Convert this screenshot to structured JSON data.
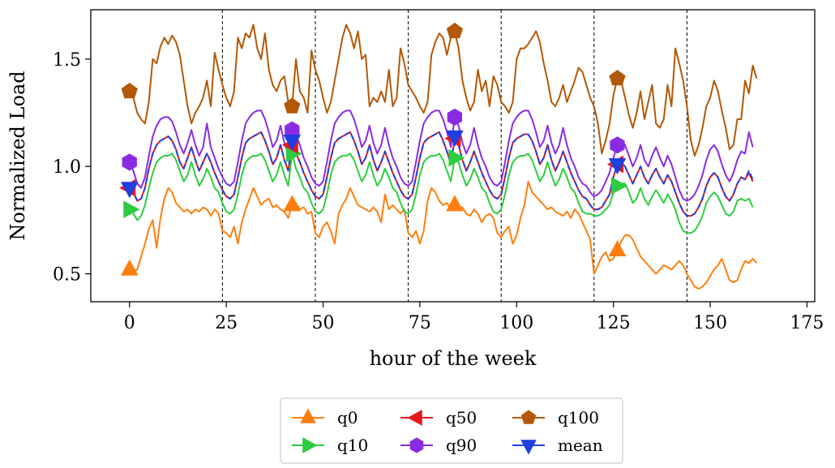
{
  "chart_data": {
    "type": "line",
    "title": "",
    "xlabel": "hour of the week",
    "ylabel": "Normalized Load",
    "xlim": [
      -10,
      177
    ],
    "ylim": [
      0.37,
      1.73
    ],
    "xticks": [
      0,
      25,
      50,
      75,
      100,
      125,
      150,
      175
    ],
    "yticks": [
      0.5,
      1.0,
      1.5
    ],
    "ytick_labels": [
      "0.5",
      "1.0",
      "1.5"
    ],
    "day_boundaries": [
      24,
      48,
      72,
      96,
      120,
      144
    ],
    "legend_position": "below",
    "legend_ncol": 3,
    "marker_x": [
      0,
      42,
      84,
      126
    ],
    "series": [
      {
        "name": "q0",
        "color": "#ff7f0e",
        "marker": "triangle-up",
        "values": [
          0.52,
          0.51,
          0.52,
          0.58,
          0.64,
          0.71,
          0.75,
          0.62,
          0.76,
          0.85,
          0.9,
          0.88,
          0.83,
          0.81,
          0.79,
          0.8,
          0.78,
          0.8,
          0.79,
          0.81,
          0.8,
          0.77,
          0.8,
          0.78,
          0.7,
          0.69,
          0.67,
          0.72,
          0.64,
          0.74,
          0.8,
          0.85,
          0.9,
          0.86,
          0.82,
          0.84,
          0.85,
          0.81,
          0.82,
          0.8,
          0.79,
          0.76,
          0.82,
          0.83,
          0.8,
          0.81,
          0.78,
          0.79,
          0.69,
          0.67,
          0.72,
          0.74,
          0.7,
          0.64,
          0.78,
          0.82,
          0.85,
          0.9,
          0.86,
          0.82,
          0.81,
          0.8,
          0.79,
          0.81,
          0.79,
          0.74,
          0.87,
          0.8,
          0.82,
          0.8,
          0.78,
          0.8,
          0.69,
          0.67,
          0.7,
          0.64,
          0.7,
          0.84,
          0.9,
          0.88,
          0.84,
          0.82,
          0.83,
          0.8,
          0.82,
          0.8,
          0.81,
          0.78,
          0.77,
          0.8,
          0.78,
          0.74,
          0.77,
          0.78,
          0.76,
          0.69,
          0.67,
          0.7,
          0.72,
          0.64,
          0.68,
          0.76,
          0.82,
          0.93,
          0.88,
          0.86,
          0.84,
          0.82,
          0.8,
          0.81,
          0.79,
          0.78,
          0.77,
          0.79,
          0.76,
          0.8,
          0.78,
          0.74,
          0.7,
          0.66,
          0.5,
          0.54,
          0.58,
          0.6,
          0.56,
          0.57,
          0.61,
          0.65,
          0.68,
          0.68,
          0.66,
          0.62,
          0.58,
          0.56,
          0.54,
          0.52,
          0.5,
          0.52,
          0.54,
          0.53,
          0.52,
          0.54,
          0.56,
          0.54,
          0.5,
          0.47,
          0.44,
          0.43,
          0.44,
          0.46,
          0.49,
          0.52,
          0.54,
          0.57,
          0.52,
          0.47,
          0.46,
          0.47,
          0.52,
          0.56,
          0.55,
          0.57,
          0.55
        ]
      },
      {
        "name": "q10",
        "color": "#2ecc40",
        "marker": "triangle-right",
        "values": [
          0.8,
          0.78,
          0.75,
          0.77,
          0.82,
          0.9,
          0.97,
          1.02,
          1.04,
          1.05,
          1.05,
          1.06,
          1.03,
          0.98,
          0.93,
          0.96,
          1.02,
          0.96,
          0.91,
          0.94,
          0.99,
          0.95,
          0.9,
          0.88,
          0.83,
          0.79,
          0.78,
          0.8,
          0.87,
          0.96,
          1.02,
          1.04,
          1.05,
          1.05,
          1.06,
          1.03,
          0.98,
          0.93,
          0.96,
          1.02,
          0.96,
          0.91,
          1.06,
          0.99,
          0.95,
          0.9,
          0.88,
          0.83,
          0.79,
          0.78,
          0.8,
          0.87,
          0.96,
          1.02,
          1.04,
          1.05,
          1.05,
          1.06,
          1.03,
          0.98,
          0.93,
          0.96,
          1.02,
          0.96,
          0.91,
          0.94,
          0.99,
          0.95,
          0.9,
          0.88,
          0.83,
          0.79,
          0.78,
          0.8,
          0.87,
          0.96,
          1.02,
          1.04,
          1.05,
          1.05,
          1.06,
          1.03,
          0.98,
          0.93,
          1.04,
          1.02,
          0.96,
          0.91,
          0.94,
          0.99,
          0.95,
          0.9,
          0.88,
          0.83,
          0.79,
          0.78,
          0.8,
          0.87,
          0.96,
          1.02,
          1.04,
          1.05,
          1.05,
          1.06,
          1.03,
          0.98,
          0.93,
          0.96,
          1.02,
          0.96,
          0.91,
          0.94,
          0.99,
          0.95,
          0.9,
          0.88,
          0.83,
          0.79,
          0.78,
          0.78,
          0.77,
          0.77,
          0.78,
          0.8,
          0.82,
          0.88,
          0.91,
          0.92,
          0.92,
          0.88,
          0.83,
          0.85,
          0.9,
          0.85,
          0.82,
          0.86,
          0.89,
          0.86,
          0.83,
          0.87,
          0.84,
          0.8,
          0.74,
          0.7,
          0.69,
          0.69,
          0.7,
          0.73,
          0.77,
          0.83,
          0.86,
          0.88,
          0.86,
          0.82,
          0.78,
          0.77,
          0.79,
          0.84,
          0.85,
          0.84,
          0.85,
          0.81
        ]
      },
      {
        "name": "q50",
        "color": "#e41a1c",
        "marker": "triangle-left",
        "values": [
          0.9,
          0.88,
          0.84,
          0.85,
          0.9,
          0.99,
          1.06,
          1.1,
          1.12,
          1.13,
          1.14,
          1.12,
          1.08,
          1.02,
          0.99,
          1.04,
          1.09,
          1.03,
          0.98,
          1.02,
          1.06,
          1.02,
          0.97,
          0.93,
          0.89,
          0.86,
          0.85,
          0.87,
          0.95,
          1.04,
          1.11,
          1.13,
          1.14,
          1.15,
          1.16,
          1.12,
          1.07,
          1.01,
          1.04,
          1.1,
          1.03,
          0.98,
          1.1,
          1.06,
          1.02,
          0.97,
          0.93,
          0.89,
          0.86,
          0.85,
          0.87,
          0.95,
          1.04,
          1.11,
          1.13,
          1.14,
          1.15,
          1.16,
          1.12,
          1.07,
          1.01,
          1.04,
          1.1,
          1.03,
          0.98,
          1.02,
          1.07,
          1.02,
          0.97,
          0.93,
          0.89,
          0.86,
          0.85,
          0.87,
          0.95,
          1.04,
          1.11,
          1.13,
          1.14,
          1.15,
          1.16,
          1.12,
          1.07,
          1.01,
          1.13,
          1.1,
          1.03,
          0.98,
          1.02,
          1.07,
          1.02,
          0.97,
          0.93,
          0.89,
          0.86,
          0.85,
          0.87,
          0.95,
          1.04,
          1.11,
          1.13,
          1.14,
          1.15,
          1.15,
          1.12,
          1.07,
          1.01,
          1.04,
          1.1,
          1.03,
          0.98,
          1.02,
          1.07,
          1.02,
          0.97,
          0.93,
          0.89,
          0.86,
          0.85,
          0.82,
          0.8,
          0.8,
          0.81,
          0.84,
          0.87,
          0.95,
          1.01,
          1.02,
          1.0,
          0.96,
          0.92,
          0.96,
          1.0,
          0.95,
          0.92,
          0.96,
          0.99,
          0.95,
          0.92,
          0.96,
          0.93,
          0.88,
          0.83,
          0.79,
          0.77,
          0.77,
          0.78,
          0.81,
          0.85,
          0.91,
          0.95,
          0.97,
          0.95,
          0.9,
          0.86,
          0.84,
          0.87,
          0.92,
          0.95,
          0.94,
          0.97,
          0.93
        ]
      },
      {
        "name": "q90",
        "color": "#8a2be2",
        "marker": "hexagon",
        "values": [
          1.02,
          0.98,
          0.92,
          0.9,
          0.95,
          1.05,
          1.14,
          1.19,
          1.22,
          1.23,
          1.23,
          1.21,
          1.16,
          1.1,
          1.06,
          1.11,
          1.17,
          1.1,
          1.05,
          1.09,
          1.2,
          1.09,
          1.04,
          0.99,
          0.95,
          0.92,
          0.91,
          0.93,
          1.02,
          1.12,
          1.2,
          1.23,
          1.25,
          1.26,
          1.26,
          1.22,
          1.16,
          1.09,
          1.12,
          1.19,
          1.11,
          1.06,
          1.17,
          1.15,
          1.1,
          1.04,
          1.0,
          0.95,
          0.92,
          0.91,
          0.93,
          1.02,
          1.12,
          1.2,
          1.23,
          1.25,
          1.26,
          1.26,
          1.22,
          1.16,
          1.09,
          1.12,
          1.19,
          1.11,
          1.06,
          1.1,
          1.18,
          1.1,
          1.04,
          1.0,
          0.95,
          0.92,
          0.91,
          0.93,
          1.02,
          1.12,
          1.2,
          1.23,
          1.25,
          1.26,
          1.26,
          1.22,
          1.16,
          1.09,
          1.23,
          1.19,
          1.11,
          1.06,
          1.1,
          1.18,
          1.1,
          1.04,
          1.0,
          0.95,
          0.92,
          0.91,
          0.93,
          1.02,
          1.12,
          1.2,
          1.23,
          1.25,
          1.26,
          1.26,
          1.22,
          1.16,
          1.09,
          1.12,
          1.19,
          1.11,
          1.06,
          1.1,
          1.18,
          1.1,
          1.04,
          1.0,
          0.95,
          0.92,
          0.91,
          0.88,
          0.86,
          0.87,
          0.89,
          0.93,
          0.97,
          1.04,
          1.1,
          1.12,
          1.1,
          1.05,
          1.0,
          1.04,
          1.1,
          1.03,
          1.0,
          1.05,
          1.09,
          1.04,
          1.0,
          1.05,
          1.01,
          0.95,
          0.89,
          0.85,
          0.84,
          0.85,
          0.87,
          0.91,
          0.96,
          1.03,
          1.08,
          1.1,
          1.07,
          1.01,
          0.96,
          0.93,
          0.97,
          1.03,
          1.07,
          1.06,
          1.16,
          1.09
        ]
      },
      {
        "name": "q100",
        "color": "#b35806",
        "marker": "pentagon",
        "values": [
          1.35,
          1.32,
          1.25,
          1.22,
          1.2,
          1.3,
          1.5,
          1.48,
          1.56,
          1.6,
          1.57,
          1.61,
          1.58,
          1.52,
          1.4,
          1.28,
          1.2,
          1.25,
          1.28,
          1.32,
          1.4,
          1.28,
          1.53,
          1.45,
          1.38,
          1.32,
          1.28,
          1.35,
          1.6,
          1.55,
          1.62,
          1.6,
          1.66,
          1.55,
          1.5,
          1.62,
          1.45,
          1.38,
          1.35,
          1.4,
          1.42,
          1.3,
          1.28,
          1.5,
          1.35,
          1.32,
          1.25,
          1.54,
          1.45,
          1.4,
          1.32,
          1.25,
          1.3,
          1.4,
          1.5,
          1.6,
          1.66,
          1.62,
          1.55,
          1.63,
          1.5,
          1.52,
          1.28,
          1.32,
          1.3,
          1.35,
          1.3,
          1.45,
          1.28,
          1.32,
          1.55,
          1.48,
          1.38,
          1.35,
          1.32,
          1.28,
          1.25,
          1.3,
          1.52,
          1.58,
          1.62,
          1.6,
          1.52,
          1.6,
          1.63,
          1.55,
          1.4,
          1.32,
          1.26,
          1.3,
          1.45,
          1.35,
          1.4,
          1.28,
          1.42,
          1.38,
          1.3,
          1.28,
          1.25,
          1.3,
          1.5,
          1.55,
          1.55,
          1.57,
          1.6,
          1.63,
          1.58,
          1.48,
          1.4,
          1.3,
          1.28,
          1.32,
          1.38,
          1.3,
          1.35,
          1.4,
          1.46,
          1.44,
          1.38,
          1.32,
          1.28,
          1.2,
          1.06,
          1.12,
          1.2,
          1.33,
          1.41,
          1.4,
          1.32,
          1.24,
          1.18,
          1.25,
          1.35,
          1.22,
          1.3,
          1.38,
          1.2,
          1.18,
          1.22,
          1.38,
          1.28,
          1.55,
          1.48,
          1.4,
          1.28,
          1.12,
          1.05,
          1.1,
          1.18,
          1.28,
          1.32,
          1.4,
          1.35,
          1.26,
          1.18,
          1.08,
          1.1,
          1.22,
          1.22,
          1.4,
          1.34,
          1.47,
          1.41
        ]
      },
      {
        "name": "mean",
        "color": "#1f3fe0",
        "marker": "triangle-down",
        "values": [
          0.9,
          0.88,
          0.84,
          0.85,
          0.9,
          0.99,
          1.06,
          1.1,
          1.12,
          1.13,
          1.14,
          1.12,
          1.08,
          1.02,
          0.99,
          1.04,
          1.09,
          1.03,
          0.98,
          1.02,
          1.06,
          1.02,
          0.97,
          0.93,
          0.89,
          0.86,
          0.85,
          0.87,
          0.95,
          1.04,
          1.11,
          1.13,
          1.14,
          1.15,
          1.16,
          1.12,
          1.07,
          1.01,
          1.04,
          1.1,
          1.03,
          0.98,
          1.12,
          1.06,
          1.02,
          0.97,
          0.93,
          0.89,
          0.86,
          0.85,
          0.87,
          0.95,
          1.04,
          1.11,
          1.13,
          1.14,
          1.15,
          1.16,
          1.12,
          1.07,
          1.01,
          1.04,
          1.1,
          1.03,
          0.98,
          1.02,
          1.07,
          1.02,
          0.97,
          0.93,
          0.89,
          0.86,
          0.85,
          0.87,
          0.95,
          1.04,
          1.11,
          1.13,
          1.14,
          1.15,
          1.16,
          1.12,
          1.07,
          1.01,
          1.14,
          1.1,
          1.03,
          0.98,
          1.02,
          1.07,
          1.02,
          0.97,
          0.93,
          0.89,
          0.86,
          0.85,
          0.87,
          0.95,
          1.04,
          1.11,
          1.13,
          1.14,
          1.15,
          1.15,
          1.12,
          1.07,
          1.01,
          1.04,
          1.1,
          1.03,
          0.98,
          1.02,
          1.07,
          1.02,
          0.97,
          0.93,
          0.89,
          0.86,
          0.85,
          0.82,
          0.8,
          0.8,
          0.81,
          0.84,
          0.87,
          0.95,
          1.01,
          1.02,
          1.0,
          0.96,
          0.92,
          0.96,
          1.0,
          0.95,
          0.92,
          0.96,
          0.99,
          0.95,
          0.92,
          0.96,
          0.93,
          0.88,
          0.83,
          0.79,
          0.77,
          0.77,
          0.78,
          0.81,
          0.85,
          0.91,
          0.95,
          0.97,
          0.95,
          0.9,
          0.86,
          0.84,
          0.87,
          0.92,
          0.95,
          0.94,
          0.98,
          0.94
        ]
      }
    ]
  }
}
